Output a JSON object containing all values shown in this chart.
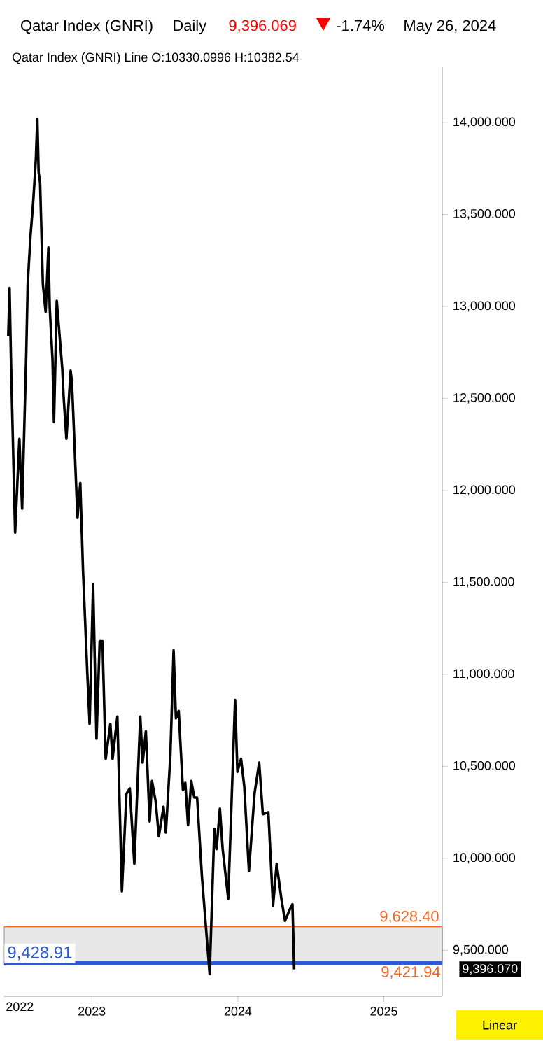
{
  "chart_data": {
    "type": "line",
    "title": "Qatar Index  (GNRI)",
    "subtitle": "Qatar Index (GNRI)  Line  O:10330.0996  H:10382.54",
    "x": [
      2022.428,
      2022.437,
      2022.447,
      2022.475,
      2022.504,
      2022.523,
      2022.551,
      2022.561,
      2022.58,
      2022.599,
      2022.617,
      2022.627,
      2022.636,
      2022.646,
      2022.665,
      2022.684,
      2022.703,
      2022.712,
      2022.731,
      2022.741,
      2022.76,
      2022.798,
      2022.807,
      2022.826,
      2022.855,
      2022.864,
      2022.902,
      2022.921,
      2022.94,
      2022.969,
      2022.985,
      2023.009,
      2023.032,
      2023.054,
      2023.073,
      2023.095,
      2023.127,
      2023.142,
      2023.175,
      2023.206,
      2023.237,
      2023.26,
      2023.291,
      2023.332,
      2023.348,
      2023.37,
      2023.396,
      2023.412,
      2023.437,
      2023.459,
      2023.491,
      2023.507,
      2023.538,
      2023.56,
      2023.576,
      2023.595,
      2023.624,
      2023.64,
      2023.659,
      2023.681,
      2023.702,
      2023.721,
      2023.754,
      2023.807,
      2023.839,
      2023.854,
      2023.877,
      2023.896,
      2023.934,
      2023.981,
      2023.997,
      2024.022,
      2024.044,
      2024.076,
      2024.114,
      2024.146,
      2024.171,
      2024.209,
      2024.241,
      2024.266,
      2024.298,
      2024.323,
      2024.355,
      2024.374,
      2024.386
    ],
    "series": [
      {
        "color": "#000000",
        "values": [
          12840,
          13100,
          12690,
          11770,
          12280,
          11900,
          12740,
          13120,
          13380,
          13570,
          13800,
          14020,
          13730,
          13670,
          13120,
          12970,
          13320,
          12990,
          12710,
          12370,
          13030,
          12660,
          12510,
          12280,
          12650,
          12590,
          11850,
          12040,
          11560,
          11010,
          10730,
          11490,
          10650,
          11180,
          11180,
          10540,
          10730,
          10540,
          10770,
          9820,
          10350,
          10380,
          9970,
          10770,
          10520,
          10690,
          10200,
          10420,
          10310,
          10120,
          10280,
          10140,
          10560,
          11130,
          10760,
          10800,
          10370,
          10410,
          10180,
          10420,
          10330,
          10330,
          9900,
          9370,
          10160,
          10050,
          10270,
          10050,
          9780,
          10860,
          10470,
          10540,
          10390,
          9930,
          10350,
          10520,
          10240,
          10250,
          9740,
          9970,
          9780,
          9660,
          9720,
          9750,
          9396
        ]
      }
    ],
    "xlim": [
      2022.4,
      2025.4
    ],
    "xticks": [
      2023,
      2024,
      2025
    ],
    "ylim": [
      9250,
      14300
    ],
    "yticks": [
      {
        "value": 9500,
        "label": "9,500.000"
      },
      {
        "value": 10000,
        "label": "10,000.000"
      },
      {
        "value": 10500,
        "label": "10,500.000"
      },
      {
        "value": 11000,
        "label": "11,000.000"
      },
      {
        "value": 11500,
        "label": "11,500.000"
      },
      {
        "value": 12000,
        "label": "12,000.000"
      },
      {
        "value": 12500,
        "label": "12,500.000"
      },
      {
        "value": 13000,
        "label": "13,000.000"
      },
      {
        "value": 13500,
        "label": "13,500.000"
      },
      {
        "value": 14000,
        "label": "14,000.000"
      }
    ],
    "ref_lines": [
      {
        "axis": "y",
        "value": 9628.4,
        "label": "9,628.40",
        "color": "#f26522"
      },
      {
        "axis": "y",
        "value": 9428.91,
        "label": "9,428.91",
        "color": "#2a5bd7"
      }
    ],
    "bands": [
      {
        "axis": "y",
        "from": 9421.94,
        "to": 9628.4,
        "label": "9,421.94",
        "color": "#e8e8e8"
      }
    ],
    "annotations": [
      "Daily",
      "9,396.069",
      "-1.74%",
      "May 26, 2024",
      "Linear",
      "9,396.070",
      "2022"
    ],
    "grid": false,
    "marker": "none",
    "line_style": "solid"
  }
}
